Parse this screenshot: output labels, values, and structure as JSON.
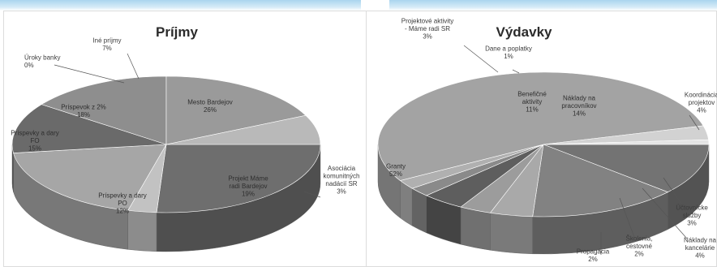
{
  "chart_data": [
    {
      "type": "pie",
      "title": "Príjmy",
      "unit": "%",
      "slices": [
        {
          "label": [
            "Mesto Bardejov"
          ],
          "value": 26,
          "display": "26%",
          "color": "#6e6e6e"
        },
        {
          "label": [
            "Asociácia",
            "komunitných",
            "nadácií SR"
          ],
          "value": 3,
          "display": "3%",
          "color": "#c2c2c2"
        },
        {
          "label": [
            "Projekt Máme",
            "radi Bardejov"
          ],
          "value": 19,
          "display": "19%",
          "color": "#a6a6a6"
        },
        {
          "label": [
            "Príspevky a dary",
            "PO"
          ],
          "value": 12,
          "display": "12%",
          "color": "#6a6a6a"
        },
        {
          "label": [
            "Príspevky a dary",
            "FO"
          ],
          "value": 15,
          "display": "15%",
          "color": "#8e8e8e"
        },
        {
          "label": [
            "Príspevok z 2%"
          ],
          "value": 18,
          "display": "18%",
          "color": "#9a9a9a"
        },
        {
          "label": [
            "Úroky banky"
          ],
          "value": 0,
          "display": "0%",
          "color": "#b4b4b4"
        },
        {
          "label": [
            "Iné príjmy"
          ],
          "value": 7,
          "display": "7%",
          "color": "#b9b9b9"
        }
      ]
    },
    {
      "type": "pie",
      "title": "Výdavky",
      "unit": "%",
      "slices": [
        {
          "label": [
            "Benefičné",
            "aktivity"
          ],
          "value": 11,
          "display": "11%",
          "color": "#737373"
        },
        {
          "label": [
            "Náklady na",
            "pracovníkov"
          ],
          "value": 14,
          "display": "14%",
          "color": "#828282"
        },
        {
          "label": [
            "Koordinácia",
            "projektov"
          ],
          "value": 4,
          "display": "4%",
          "color": "#a9a9a9"
        },
        {
          "label": [
            "Účtovnícke",
            "služby"
          ],
          "value": 3,
          "display": "3%",
          "color": "#9c9c9c"
        },
        {
          "label": [
            "Náklady na",
            "kancelárie"
          ],
          "value": 4,
          "display": "4%",
          "color": "#5e5e5e"
        },
        {
          "label": [
            "Školenia,",
            "cestovné"
          ],
          "value": 2,
          "display": "2%",
          "color": "#8a8a8a"
        },
        {
          "label": [
            "Propagácia"
          ],
          "value": 2,
          "display": "2%",
          "color": "#b0b0b0"
        },
        {
          "label": [
            "Granty"
          ],
          "value": 52,
          "display": "52%",
          "color": "#a3a3a3"
        },
        {
          "label": [
            "Projektové aktivity",
            "- Máme radi SR"
          ],
          "value": 3,
          "display": "3%",
          "color": "#d2d2d2"
        },
        {
          "label": [
            "Dane a poplatky"
          ],
          "value": 1,
          "display": "1%",
          "color": "#e4e4e4"
        }
      ]
    }
  ]
}
